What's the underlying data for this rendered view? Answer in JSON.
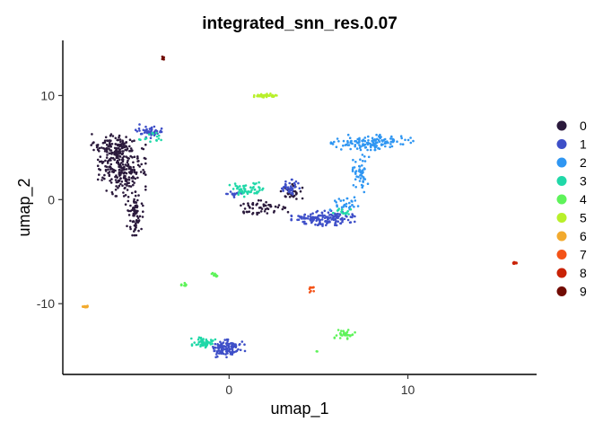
{
  "chart_data": {
    "type": "scatter",
    "title": "integrated_snn_res.0.07",
    "xlabel": "umap_1",
    "ylabel": "umap_2",
    "xlim": [
      -9.3,
      17.2
    ],
    "ylim": [
      -16.8,
      15.3
    ],
    "x_ticks": [
      {
        "value": 0,
        "label": "0"
      },
      {
        "value": 10,
        "label": "10"
      }
    ],
    "y_ticks": [
      {
        "value": 10,
        "label": "10"
      },
      {
        "value": 0,
        "label": "0"
      },
      {
        "value": -10,
        "label": "-10"
      }
    ],
    "legend_position": "right",
    "grid": false,
    "series": [
      {
        "name": "0",
        "color": "#2B1A3C",
        "clusters": [
          {
            "center": [
              -6.0,
              3.0
            ],
            "spread": [
              1.1,
              2.2
            ],
            "n": 260
          },
          {
            "center": [
              -6.5,
              5.2
            ],
            "spread": [
              1.0,
              0.9
            ],
            "n": 90
          },
          {
            "center": [
              -5.3,
              -1.5
            ],
            "spread": [
              0.4,
              1.6
            ],
            "n": 80
          },
          {
            "center": [
              1.8,
              -0.8
            ],
            "spread": [
              1.4,
              0.6
            ],
            "n": 55
          },
          {
            "center": [
              3.5,
              0.8
            ],
            "spread": [
              0.5,
              0.6
            ],
            "n": 30
          }
        ]
      },
      {
        "name": "1",
        "color": "#3E4FC8",
        "clusters": [
          {
            "center": [
              5.3,
              -1.8
            ],
            "spread": [
              1.5,
              0.6
            ],
            "n": 150
          },
          {
            "center": [
              3.4,
              1.2
            ],
            "spread": [
              0.5,
              0.6
            ],
            "n": 40
          },
          {
            "center": [
              -0.2,
              -14.3
            ],
            "spread": [
              0.9,
              0.7
            ],
            "n": 110
          },
          {
            "center": [
              -4.5,
              6.5
            ],
            "spread": [
              0.6,
              0.6
            ],
            "n": 45
          },
          {
            "center": [
              0.3,
              0.6
            ],
            "spread": [
              0.5,
              0.3
            ],
            "n": 15
          }
        ]
      },
      {
        "name": "2",
        "color": "#2F96F2",
        "clusters": [
          {
            "center": [
              8.0,
              5.5
            ],
            "spread": [
              1.9,
              0.6
            ],
            "n": 140
          },
          {
            "center": [
              7.4,
              2.5
            ],
            "spread": [
              0.4,
              1.5
            ],
            "n": 50
          },
          {
            "center": [
              6.5,
              -0.5
            ],
            "spread": [
              0.7,
              0.6
            ],
            "n": 30
          }
        ]
      },
      {
        "name": "3",
        "color": "#20D8A8",
        "clusters": [
          {
            "center": [
              1.0,
              1.0
            ],
            "spread": [
              0.8,
              0.6
            ],
            "n": 55
          },
          {
            "center": [
              -1.5,
              -13.7
            ],
            "spread": [
              0.6,
              0.5
            ],
            "n": 55
          },
          {
            "center": [
              -4.3,
              5.8
            ],
            "spread": [
              0.6,
              0.5
            ],
            "n": 15
          },
          {
            "center": [
              6.2,
              -1.3
            ],
            "spread": [
              0.5,
              0.4
            ],
            "n": 15
          }
        ]
      },
      {
        "name": "4",
        "color": "#5EF35A",
        "clusters": [
          {
            "center": [
              6.5,
              -13.0
            ],
            "spread": [
              0.5,
              0.4
            ],
            "n": 35
          },
          {
            "center": [
              -2.5,
              -8.2
            ],
            "spread": [
              0.15,
              0.15
            ],
            "n": 10
          },
          {
            "center": [
              -0.8,
              -7.2
            ],
            "spread": [
              0.15,
              0.3
            ],
            "n": 10
          },
          {
            "center": [
              4.9,
              -14.6
            ],
            "spread": [
              0.05,
              0.1
            ],
            "n": 2
          }
        ]
      },
      {
        "name": "5",
        "color": "#B8F02A",
        "clusters": [
          {
            "center": [
              2.0,
              10.0
            ],
            "spread": [
              0.55,
              0.15
            ],
            "n": 40
          }
        ]
      },
      {
        "name": "6",
        "color": "#F2AA2E",
        "clusters": [
          {
            "center": [
              -8.0,
              -10.3
            ],
            "spread": [
              0.2,
              0.1
            ],
            "n": 14
          }
        ]
      },
      {
        "name": "7",
        "color": "#F45217",
        "clusters": [
          {
            "center": [
              4.6,
              -8.6
            ],
            "spread": [
              0.25,
              0.3
            ],
            "n": 10
          }
        ]
      },
      {
        "name": "8",
        "color": "#C92206",
        "clusters": [
          {
            "center": [
              16.0,
              -6.1
            ],
            "spread": [
              0.15,
              0.1
            ],
            "n": 14
          }
        ]
      },
      {
        "name": "9",
        "color": "#710B03",
        "clusters": [
          {
            "center": [
              -3.7,
              13.6
            ],
            "spread": [
              0.05,
              0.12
            ],
            "n": 8
          }
        ]
      }
    ]
  }
}
